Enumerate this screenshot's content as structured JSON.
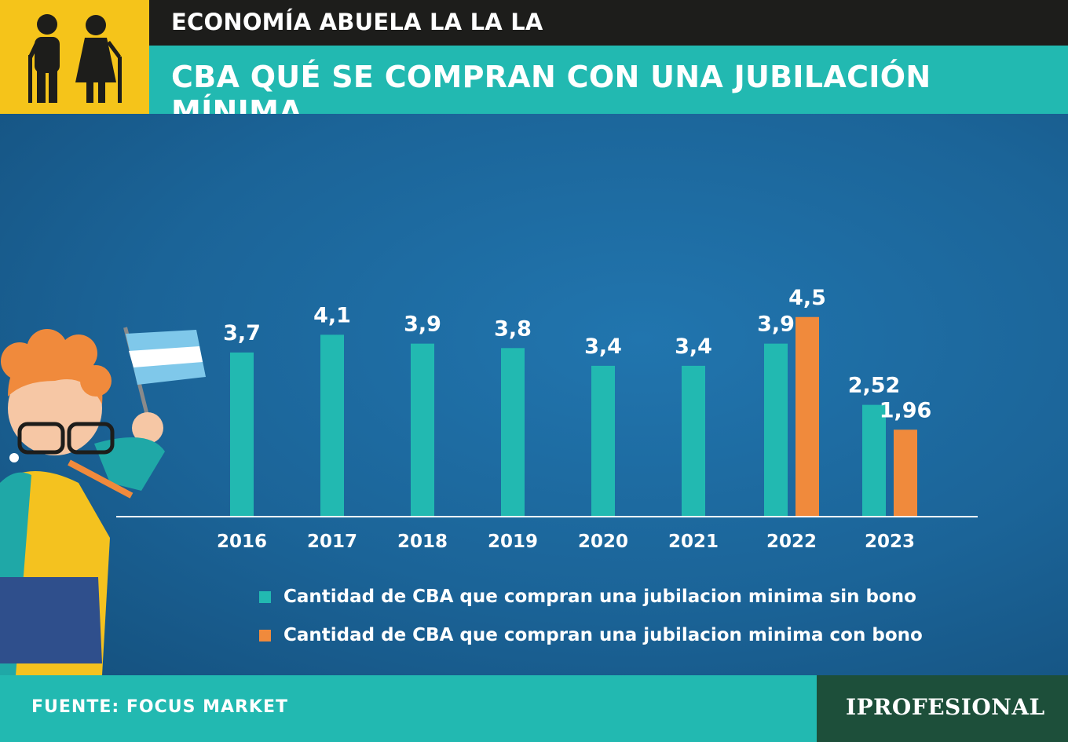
{
  "header": {
    "supertitle": "ECONOMÍA ABUELA LA LA LA",
    "title": "CBA QUÉ SE COMPRAN CON UNA JUBILACIÓN MÍNIMA",
    "icon": "elderly-couple-icon"
  },
  "colors": {
    "teal": "#22b9b1",
    "orange": "#f08a3c",
    "yellow": "#f5c41a",
    "dark": "#1d1d1b",
    "background": "#1a5d8f",
    "brand_green": "#1d4f3a"
  },
  "chart_data": {
    "type": "bar",
    "categories": [
      "2016",
      "2017",
      "2018",
      "2019",
      "2020",
      "2021",
      "2022",
      "2023"
    ],
    "series": [
      {
        "name": "Cantidad de CBA que compran una jubilacion minima sin bono",
        "color": "#22b9b1",
        "values": [
          3.7,
          4.1,
          3.9,
          3.8,
          3.4,
          3.4,
          3.9,
          2.52
        ],
        "labels": [
          "3,7",
          "4,1",
          "3,9",
          "3,8",
          "3,4",
          "3,4",
          "3,9",
          "2,52"
        ]
      },
      {
        "name": "Cantidad de CBA que compran una jubilacion minima con bono",
        "color": "#f08a3c",
        "values": [
          null,
          null,
          null,
          null,
          null,
          null,
          4.5,
          1.96
        ],
        "labels": [
          null,
          null,
          null,
          null,
          null,
          null,
          "4,5",
          "1,96"
        ]
      }
    ],
    "ylim": [
      0,
      4.5
    ],
    "grid": false,
    "legend": "bottom"
  },
  "legend": {
    "sin_bono": "Cantidad de CBA que compran una jubilacion minima sin bono",
    "con_bono": "Cantidad de CBA que compran una jubilacion minima con bono"
  },
  "footer": {
    "source": "FUENTE: FOCUS MARKET",
    "brand": "IPROFESIONAL"
  }
}
